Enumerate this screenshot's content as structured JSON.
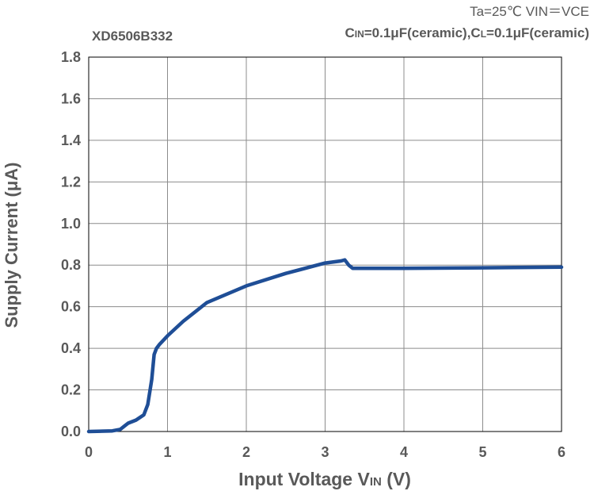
{
  "chart_data": {
    "type": "line",
    "title": "XD6506B332",
    "conditions": {
      "line1": "Ta=25℃   VIN＝VCE",
      "line2_c": "C",
      "line2_in": "IN",
      "line2_mid": "=0.1μF(ceramic),C",
      "line2_l": "L",
      "line2_end": "=0.1μF(ceramic)"
    },
    "xlabel_main": "Input Voltage V",
    "xlabel_sub": "IN",
    "xlabel_end": " (V)",
    "ylabel": "Supply Current  (μA)",
    "xlim": [
      0,
      6
    ],
    "ylim": [
      0,
      1.8
    ],
    "x_ticks": [
      "0",
      "1",
      "2",
      "3",
      "4",
      "5",
      "6"
    ],
    "y_ticks": [
      "0.0",
      "0.2",
      "0.4",
      "0.6",
      "0.8",
      "1.0",
      "1.2",
      "1.4",
      "1.6",
      "1.8"
    ],
    "grid": true,
    "series": [
      {
        "color": "#1F4E96",
        "x": [
          0,
          0.3,
          0.4,
          0.45,
          0.5,
          0.6,
          0.7,
          0.75,
          0.8,
          0.83,
          0.86,
          0.9,
          1.0,
          1.2,
          1.5,
          2.0,
          2.5,
          3.0,
          3.2,
          3.25,
          3.3,
          3.35,
          4.0,
          5.0,
          6.0
        ],
        "y": [
          0,
          0.003,
          0.01,
          0.025,
          0.04,
          0.055,
          0.08,
          0.13,
          0.25,
          0.37,
          0.4,
          0.42,
          0.46,
          0.53,
          0.62,
          0.7,
          0.76,
          0.81,
          0.82,
          0.825,
          0.8,
          0.785,
          0.785,
          0.787,
          0.79
        ]
      }
    ]
  }
}
